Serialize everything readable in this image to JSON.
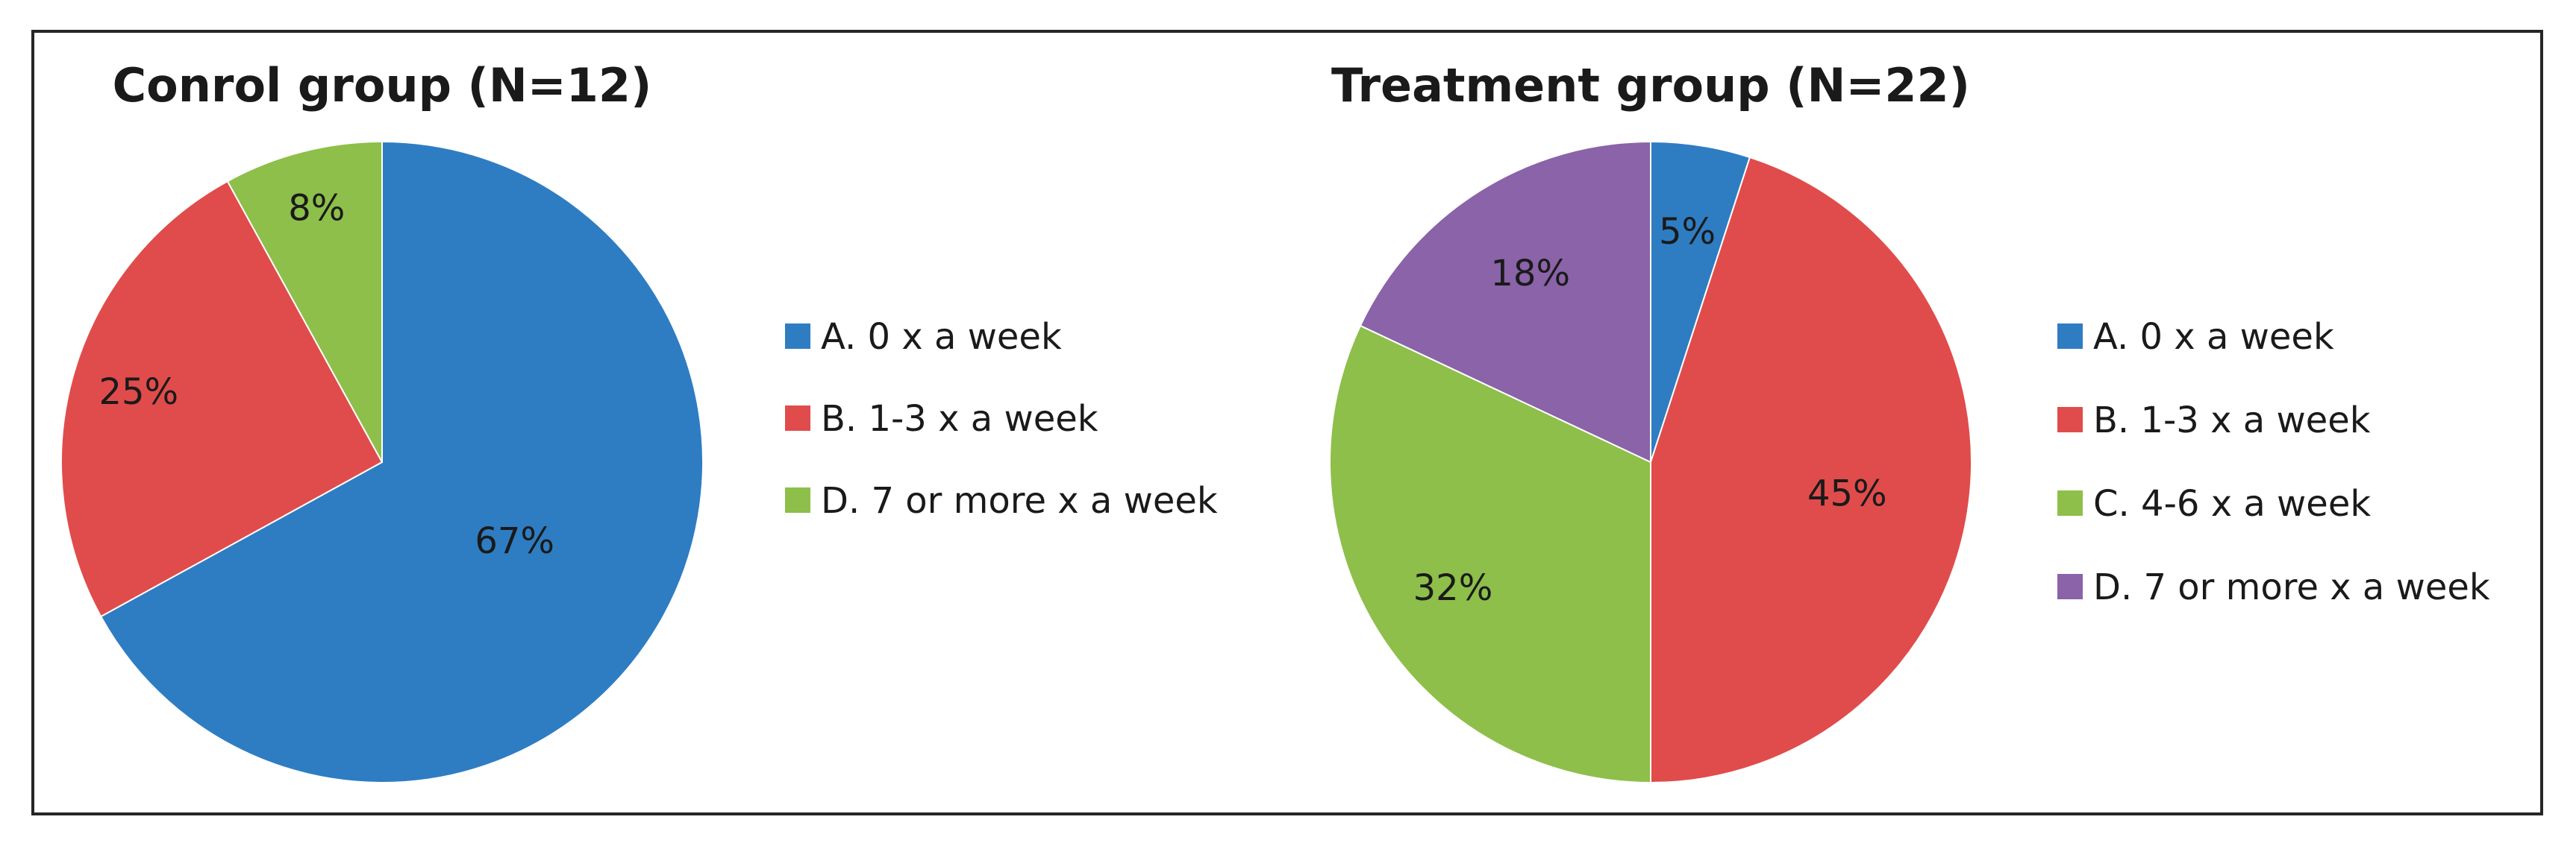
{
  "chart_data": [
    {
      "type": "pie",
      "title": "Conrol group (N=12)",
      "slices": [
        {
          "label": "A. 0 x a week",
          "value": 67,
          "display": "67%",
          "color": "#2e7dc2"
        },
        {
          "label": "B. 1-3 x a week",
          "value": 25,
          "display": "25%",
          "color": "#e04c4b"
        },
        {
          "label": "D. 7 or more x a week",
          "value": 8,
          "display": "8%",
          "color": "#8dbf4a"
        }
      ],
      "legend_position": "right"
    },
    {
      "type": "pie",
      "title": "Treatment group (N=22)",
      "slices": [
        {
          "label": "A. 0 x a week",
          "value": 5,
          "display": "5%",
          "color": "#2e7dc2"
        },
        {
          "label": "B. 1-3 x a week",
          "value": 45,
          "display": "45%",
          "color": "#e04c4b"
        },
        {
          "label": "C. 4-6 x a week",
          "value": 32,
          "display": "32%",
          "color": "#8dbf4a"
        },
        {
          "label": "D. 7 or more x a week",
          "value": 18,
          "display": "18%",
          "color": "#8a63a8"
        }
      ],
      "legend_position": "right"
    }
  ]
}
